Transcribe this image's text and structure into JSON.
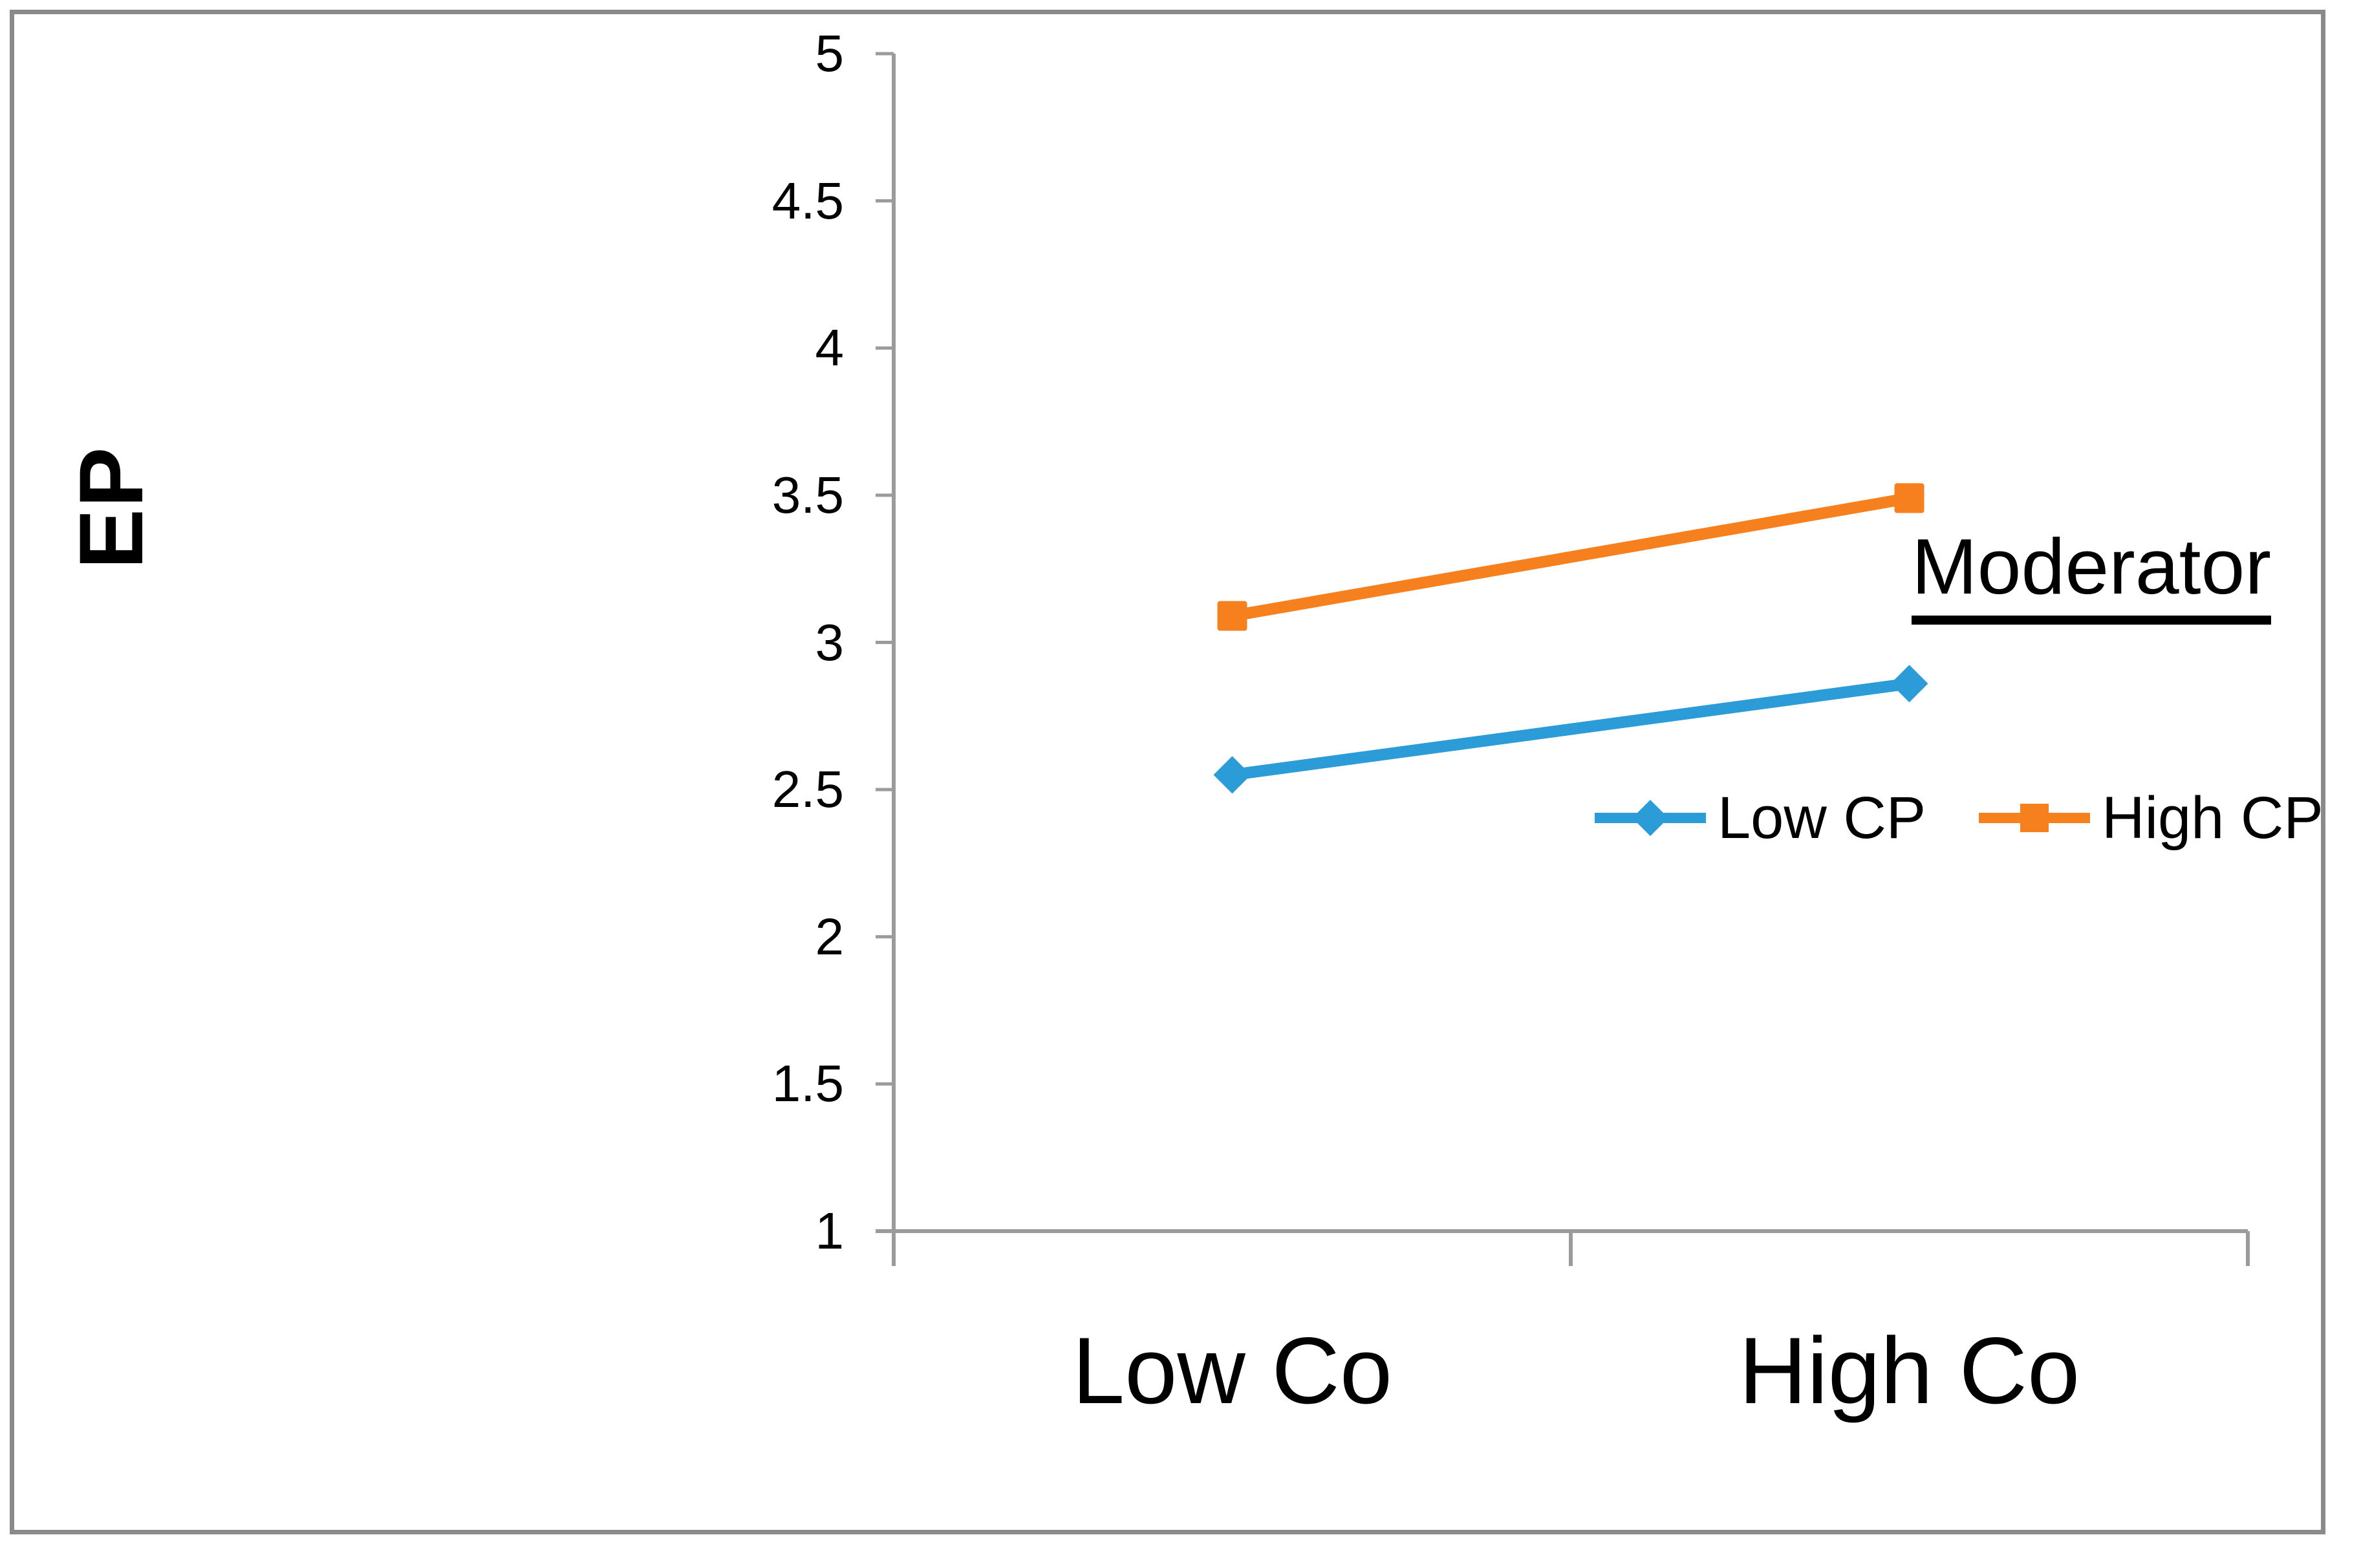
{
  "chart_data": {
    "type": "line",
    "categories": [
      "Low Co",
      "High Co"
    ],
    "series": [
      {
        "name": "Low CP",
        "values": [
          2.55,
          2.86
        ],
        "color": "#2b9cd8",
        "marker": "diamond"
      },
      {
        "name": "High CP",
        "values": [
          3.09,
          3.49
        ],
        "color": "#f6801e",
        "marker": "square"
      }
    ],
    "ylabel": "EP",
    "xlabel": "",
    "ylim": [
      1,
      5
    ],
    "ytick_step": 0.5,
    "ytick_labels": [
      "5",
      "4.5",
      "4",
      "3.5",
      "3",
      "2.5",
      "2",
      "1.5",
      "1"
    ],
    "legend_title": "Moderator",
    "legend_position": "right-middle",
    "grid": "off"
  },
  "colors": {
    "axis": "#9b9b9b",
    "frame_border": "#8a8a8a",
    "text": "#000000",
    "background": "#ffffff"
  }
}
